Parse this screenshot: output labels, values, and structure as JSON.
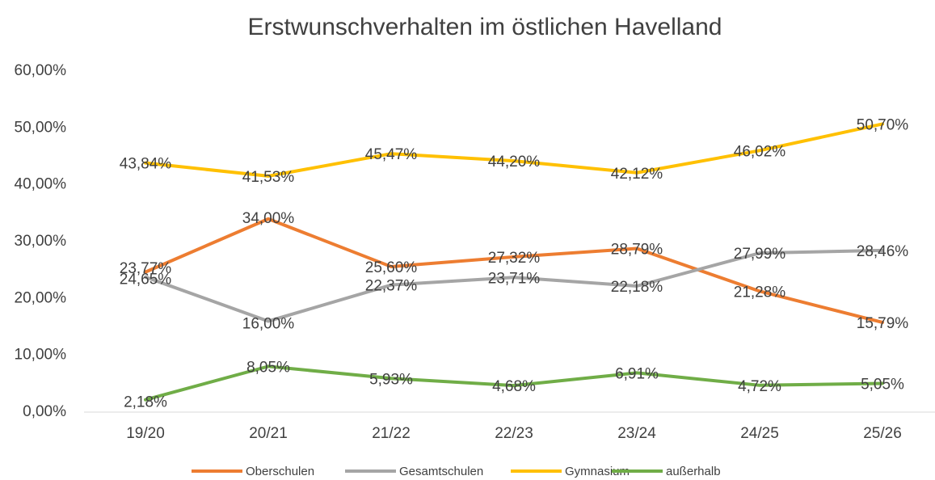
{
  "chart_data": {
    "type": "line",
    "title": "Erstwunschverhalten im östlichen Havelland",
    "categories": [
      "19/20",
      "20/21",
      "21/22",
      "22/23",
      "23/24",
      "24/25",
      "25/26"
    ],
    "series": [
      {
        "name": "Oberschulen",
        "color": "#ED7D31",
        "values": [
          24.65,
          34.0,
          25.6,
          27.32,
          28.79,
          21.28,
          15.79
        ],
        "value_labels": [
          "24,65%",
          "34,00%",
          "25,60%",
          "27,32%",
          "28,79%",
          "21,28%",
          "15,79%"
        ]
      },
      {
        "name": "Gesamtschulen",
        "color": "#A5A5A5",
        "values": [
          23.77,
          16.0,
          22.37,
          23.71,
          22.18,
          27.99,
          28.46
        ],
        "value_labels": [
          "23,77%",
          "16,00%",
          "22,37%",
          "23,71%",
          "22,18%",
          "27,99%",
          "28,46%"
        ]
      },
      {
        "name": "Gymnasium",
        "color": "#FFC000",
        "values": [
          43.84,
          41.53,
          45.47,
          44.2,
          42.12,
          46.02,
          50.7
        ],
        "value_labels": [
          "43,84%",
          "41,53%",
          "45,47%",
          "44,20%",
          "42,12%",
          "46,02%",
          "50,70%"
        ]
      },
      {
        "name": "außerhalb",
        "color": "#70AD47",
        "values": [
          2.18,
          8.05,
          5.93,
          4.68,
          6.91,
          4.72,
          5.05
        ],
        "value_labels": [
          "2,18%",
          "8,05%",
          "5,93%",
          "4,68%",
          "6,91%",
          "4,72%",
          "5,05%"
        ]
      }
    ],
    "ylim": [
      0,
      60
    ],
    "yticks": [
      {
        "value": 0,
        "label": "0,00%"
      },
      {
        "value": 10,
        "label": "10,00%"
      },
      {
        "value": 20,
        "label": "20,00%"
      },
      {
        "value": 30,
        "label": "30,00%"
      },
      {
        "value": 40,
        "label": "40,00%"
      },
      {
        "value": 50,
        "label": "50,00%"
      },
      {
        "value": 60,
        "label": "60,00%"
      }
    ],
    "grid": false,
    "legend": "bottom"
  }
}
